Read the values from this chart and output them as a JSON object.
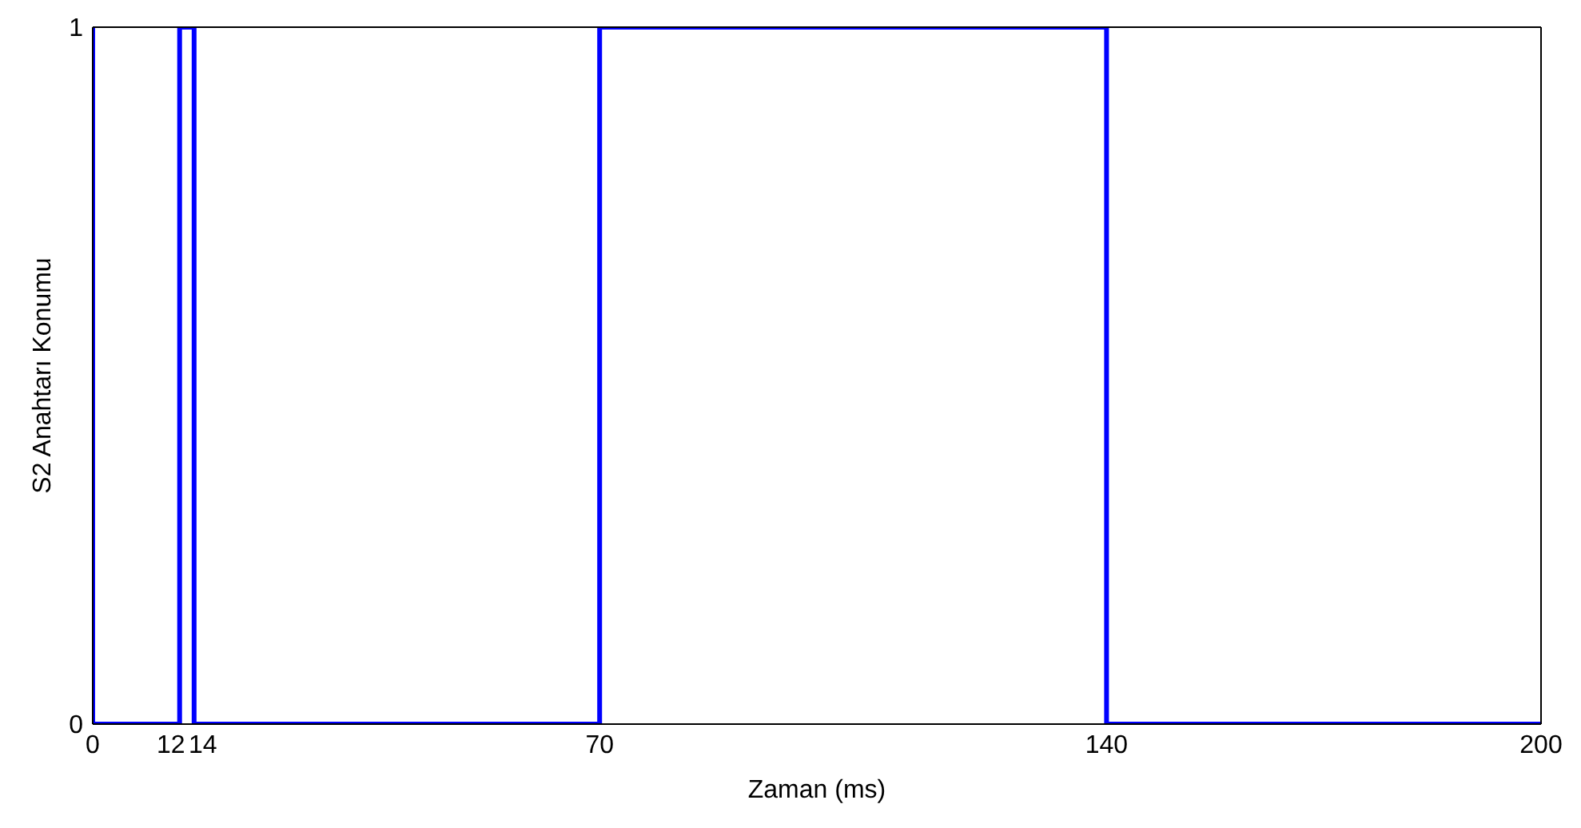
{
  "chart_data": {
    "type": "line",
    "xlabel": "Zaman (ms)",
    "ylabel": "S2 Anahtarı Konumu",
    "x": [
      0,
      0,
      12,
      12,
      14,
      14,
      70,
      70,
      140,
      140,
      200
    ],
    "series": [
      {
        "color": "#0000ff",
        "values": [
          1,
          0,
          0,
          1,
          1,
          0,
          0,
          1,
          1,
          0,
          0
        ]
      }
    ],
    "xlim": [
      0,
      200
    ],
    "xticks": [
      0,
      12,
      14,
      70,
      140,
      200
    ],
    "ylim": [
      0,
      1
    ],
    "yticks": [
      0,
      1
    ],
    "marker": "none",
    "line_style": "solid"
  }
}
